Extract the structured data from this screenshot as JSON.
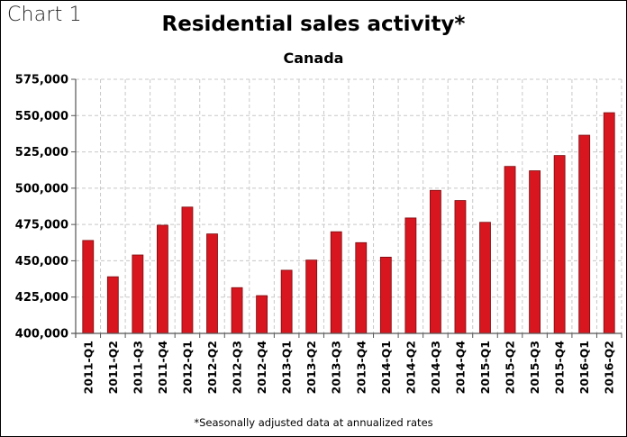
{
  "chart_label": "Chart 1",
  "chart_data": {
    "type": "bar",
    "title": "Residential sales activity*",
    "subtitle": "Canada",
    "xlabel": "",
    "ylabel": "",
    "footnote": "*Seasonally adjusted data at annualized rates",
    "ylim": [
      400000,
      575000
    ],
    "yticks": [
      400000,
      425000,
      450000,
      475000,
      500000,
      525000,
      550000,
      575000
    ],
    "ytick_labels": [
      "400,000",
      "425,000",
      "450,000",
      "475,000",
      "500,000",
      "525,000",
      "550,000",
      "575,000"
    ],
    "categories": [
      "2011-Q1",
      "2011-Q2",
      "2011-Q3",
      "2011-Q4",
      "2012-Q1",
      "2012-Q2",
      "2012-Q3",
      "2012-Q4",
      "2013-Q1",
      "2013-Q2",
      "2013-Q3",
      "2013-Q4",
      "2014-Q1",
      "2014-Q2",
      "2014-Q3",
      "2014-Q4",
      "2015-Q1",
      "2015-Q2",
      "2015-Q3",
      "2015-Q4",
      "2016-Q1",
      "2016-Q2"
    ],
    "values": [
      464000,
      439000,
      454000,
      474500,
      487000,
      468500,
      431500,
      426000,
      443500,
      450500,
      470000,
      462500,
      452500,
      479500,
      498500,
      491500,
      476500,
      515000,
      512000,
      522500,
      536500,
      552000
    ],
    "grid": true,
    "colors": {
      "bar": "#d7161f",
      "bar_edge": "#7a0b0f",
      "grid": "#c8c8c8"
    }
  }
}
